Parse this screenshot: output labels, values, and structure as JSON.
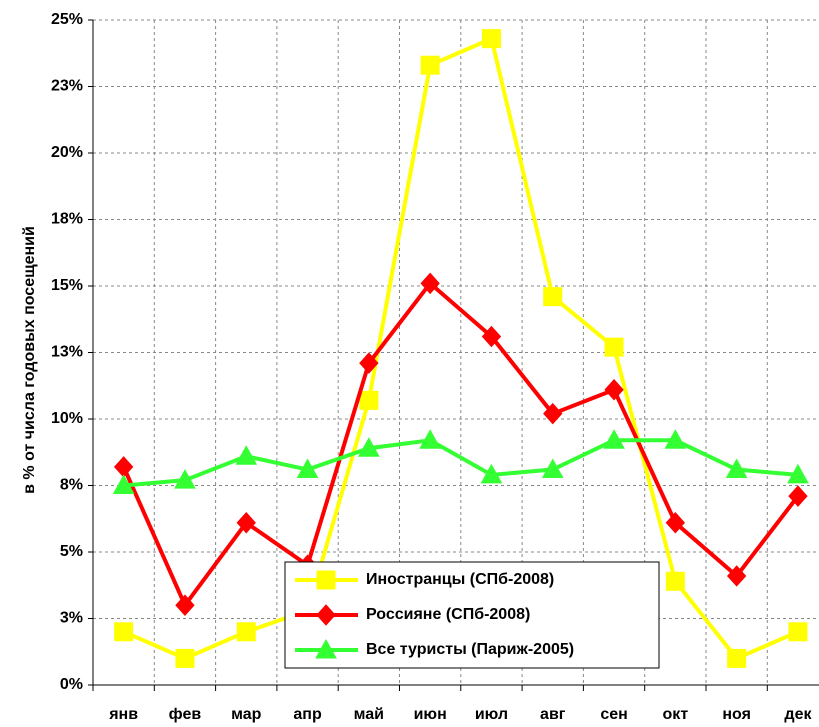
{
  "chart_data": {
    "type": "line",
    "y_label": "в % от числа годовых посещений",
    "categories": [
      "янв",
      "фев",
      "мар",
      "апр",
      "май",
      "июн",
      "июл",
      "авг",
      "сен",
      "окт",
      "ноя",
      "дек"
    ],
    "series": [
      {
        "name": "Иностранцы (СПб-2008)",
        "color": "#ffff00",
        "marker": "square",
        "values": [
          2.0,
          1.0,
          2.0,
          2.8,
          10.7,
          23.3,
          24.3,
          14.6,
          12.7,
          3.9,
          1.0,
          2.0
        ]
      },
      {
        "name": "Россияне (СПб-2008)",
        "color": "#ff0000",
        "marker": "diamond",
        "values": [
          8.2,
          3.0,
          6.1,
          4.5,
          12.1,
          15.1,
          13.1,
          10.2,
          11.1,
          6.1,
          4.1,
          7.1
        ]
      },
      {
        "name": "Все туристы (Париж-2005)",
        "color": "#33ff33",
        "marker": "triangle",
        "values": [
          7.5,
          7.7,
          8.6,
          8.1,
          8.9,
          9.2,
          7.9,
          8.1,
          9.2,
          9.2,
          8.1,
          7.9
        ]
      }
    ],
    "ylim": [
      0,
      25
    ],
    "yticks": [
      {
        "value": 0,
        "label": "0%"
      },
      {
        "value": 2.5,
        "label": "3%"
      },
      {
        "value": 5,
        "label": "5%"
      },
      {
        "value": 7.5,
        "label": "8%"
      },
      {
        "value": 10,
        "label": "10%"
      },
      {
        "value": 12.5,
        "label": "13%"
      },
      {
        "value": 15,
        "label": "15%"
      },
      {
        "value": 17.5,
        "label": "18%"
      },
      {
        "value": 20,
        "label": "20%"
      },
      {
        "value": 22.5,
        "label": "23%"
      },
      {
        "value": 25,
        "label": "25%"
      }
    ],
    "grid": true
  }
}
